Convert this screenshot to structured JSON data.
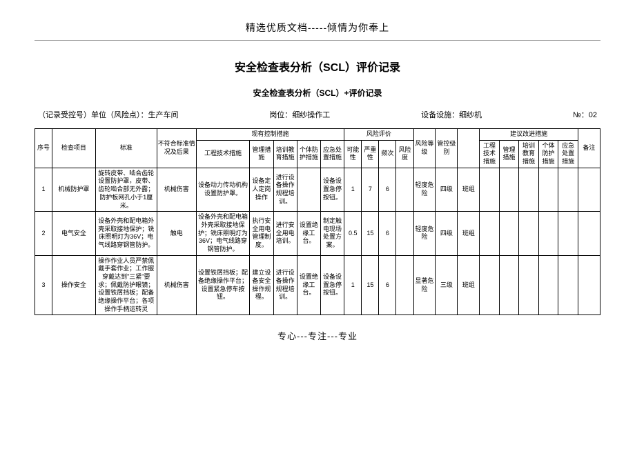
{
  "header": "精选优质文档-----倾情为你奉上",
  "title": "安全检查表分析（SCL）评价记录",
  "subtitle": "安全检查表分析（SCL）+评价记录",
  "meta": {
    "unit_label": "（记录受控号）单位（风险点）：",
    "unit_value": "生产车间",
    "position_label": "岗位：",
    "position_value": "细纱操作工",
    "equipment_label": "设备设施：",
    "equipment_value": "细纱机",
    "no_label": "№：",
    "no_value": "02"
  },
  "table": {
    "headers": {
      "seq": "序号",
      "item": "检查项目",
      "standard": "标准",
      "nonconformity": "不符合标准情况及后果",
      "existing_group": "现有控制措施",
      "engineering": "工程技术措施",
      "management": "管理措施",
      "training": "培训教育措施",
      "ppe": "个体防护措施",
      "emergency": "应急处置措施",
      "risk_group": "风险评价",
      "likelihood": "可能性",
      "severity": "严重性",
      "frequency": "频次",
      "risk_degree": "风险度",
      "risk_level": "风险等级",
      "mgmt_level": "管控级别",
      "suggest_group": "建议改进措施",
      "s_engineering": "工程技术措施",
      "s_management": "管理措施",
      "s_training": "培训教育措施",
      "s_ppe": "个体防护措施",
      "s_emergency": "应急处置措施",
      "notes": "备注"
    },
    "rows": [
      {
        "seq": "1",
        "item": "机械防护罩",
        "standard": "旋转皮带、啮合齿轮设置防护罩，皮带、齿轮啮合部无外露；防护板网孔小于1厘米。",
        "nonconformity": "机械伤害",
        "engineering": "设备动力传动机构设置防护罩。",
        "management": "设备定人定岗操作",
        "training": "进行设备操作规程培训。",
        "ppe": "",
        "emergency": "设备设置急停按钮。",
        "l": "1",
        "s": "7",
        "f": "6",
        "r": "",
        "risk_level": "轻度危险",
        "mgmt_level": "四级",
        "mgmt_by": "班组",
        "s_eng": "",
        "s_mgmt": "",
        "s_train": "",
        "s_ppe": "",
        "s_emerg": "",
        "notes": ""
      },
      {
        "seq": "2",
        "item": "电气安全",
        "standard": "设备外壳和配电箱外壳采取接地保护；铣床照明灯为36V；电气线路穿钢管防护。",
        "nonconformity": "触电",
        "engineering": "设备外壳和配电箱外壳采取接地保护；铣床照明灯为36V；电气线路穿钢管防护。",
        "management": "执行安全用电管理制度。",
        "training": "进行安全用电培训。",
        "ppe": "设置绝缘工台。",
        "emergency": "制定触电现场处置方案。",
        "l": "0.5",
        "s": "15",
        "f": "6",
        "r": "",
        "risk_level": "轻度危险",
        "mgmt_level": "四级",
        "mgmt_by": "班组",
        "s_eng": "",
        "s_mgmt": "",
        "s_train": "",
        "s_ppe": "",
        "s_emerg": "",
        "notes": ""
      },
      {
        "seq": "3",
        "item": "操作安全",
        "standard": "操作作业人员严禁佩戴手套作业；工作服穿戴达到\"三紧\"要求；佩戴防护眼镜；设置铁屑挡板；配备绝缘操作平台；各项操作手柄运转灵",
        "nonconformity": "机械伤害",
        "engineering": "设置铁屑挡板；配备绝缘操作平台；设置紧急停车按钮。",
        "management": "建立设备安全操作规程。",
        "training": "进行设备操作规程培训。",
        "ppe": "设置绝缘工台。",
        "emergency": "设备设置急停按钮。",
        "l": "1",
        "s": "15",
        "f": "6",
        "r": "",
        "risk_level": "显著危险",
        "mgmt_level": "三级",
        "mgmt_by": "班组",
        "s_eng": "",
        "s_mgmt": "",
        "s_train": "",
        "s_ppe": "",
        "s_emerg": "",
        "notes": ""
      }
    ]
  },
  "footer": "专心---专注---专业"
}
